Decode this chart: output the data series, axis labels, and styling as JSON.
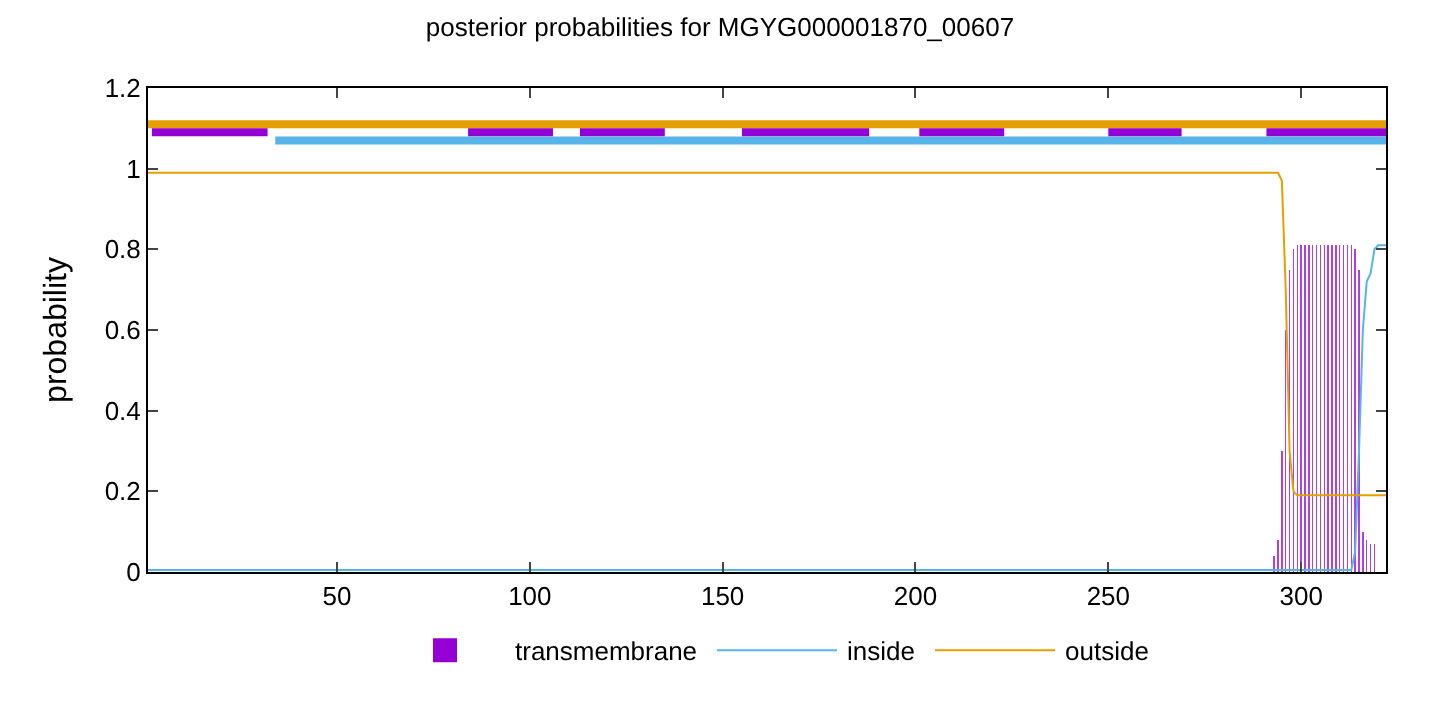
{
  "chart_data": {
    "type": "line",
    "title": "posterior probabilities for MGYG000001870_00607",
    "ylabel": "probability",
    "xlim": [
      1,
      322
    ],
    "xticks": [
      50,
      100,
      150,
      200,
      250,
      300
    ],
    "ylim": [
      0,
      1.2
    ],
    "yticks": [
      0,
      0.2,
      0.4,
      0.6,
      0.8,
      1,
      1.2
    ],
    "grid": false,
    "legend": "bottom",
    "series": [
      {
        "color": "#e69f00",
        "x": [
          1,
          322
        ],
        "values": [
          1.11,
          1.11
        ]
      },
      {
        "color": "#56b4e9",
        "x": [
          34,
          322
        ],
        "values": [
          1.07,
          1.07
        ]
      },
      {
        "color": "#9400d3",
        "x": [
          2,
          32,
          33,
          84,
          106,
          107,
          113,
          135,
          136,
          155,
          188,
          189,
          201,
          223,
          224,
          250,
          269,
          270,
          291,
          322
        ],
        "values": [
          1.09,
          1.09,
          null,
          1.09,
          1.09,
          null,
          1.09,
          1.09,
          null,
          1.09,
          1.09,
          null,
          1.09,
          1.09,
          null,
          1.09,
          1.09,
          null,
          1.09,
          1.09
        ]
      },
      {
        "name": "transmembrane",
        "type": "bar",
        "color": "#9400d3",
        "x": [
          293,
          294,
          295,
          296,
          297,
          298,
          299,
          300,
          301,
          302,
          303,
          304,
          305,
          306,
          307,
          308,
          309,
          310,
          311,
          312,
          313,
          314,
          315,
          316,
          317,
          318,
          319
        ],
        "values": [
          0.04,
          0.08,
          0.3,
          0.6,
          0.75,
          0.8,
          0.81,
          0.81,
          0.81,
          0.81,
          0.81,
          0.81,
          0.81,
          0.81,
          0.81,
          0.81,
          0.81,
          0.81,
          0.81,
          0.81,
          0.81,
          0.8,
          0.75,
          0.1,
          0.08,
          0.07,
          0.07
        ]
      },
      {
        "name": "inside",
        "color": "#56b4e9",
        "x": [
          1,
          313,
          314,
          315,
          316,
          317,
          318,
          319,
          320,
          322
        ],
        "values": [
          0.005,
          0.005,
          0.05,
          0.3,
          0.6,
          0.72,
          0.74,
          0.8,
          0.81,
          0.81
        ]
      },
      {
        "name": "outside",
        "color": "#e69f00",
        "x": [
          1,
          294,
          295,
          296,
          297,
          298,
          299,
          322
        ],
        "values": [
          0.99,
          0.99,
          0.97,
          0.7,
          0.3,
          0.2,
          0.19,
          0.19
        ]
      }
    ]
  }
}
